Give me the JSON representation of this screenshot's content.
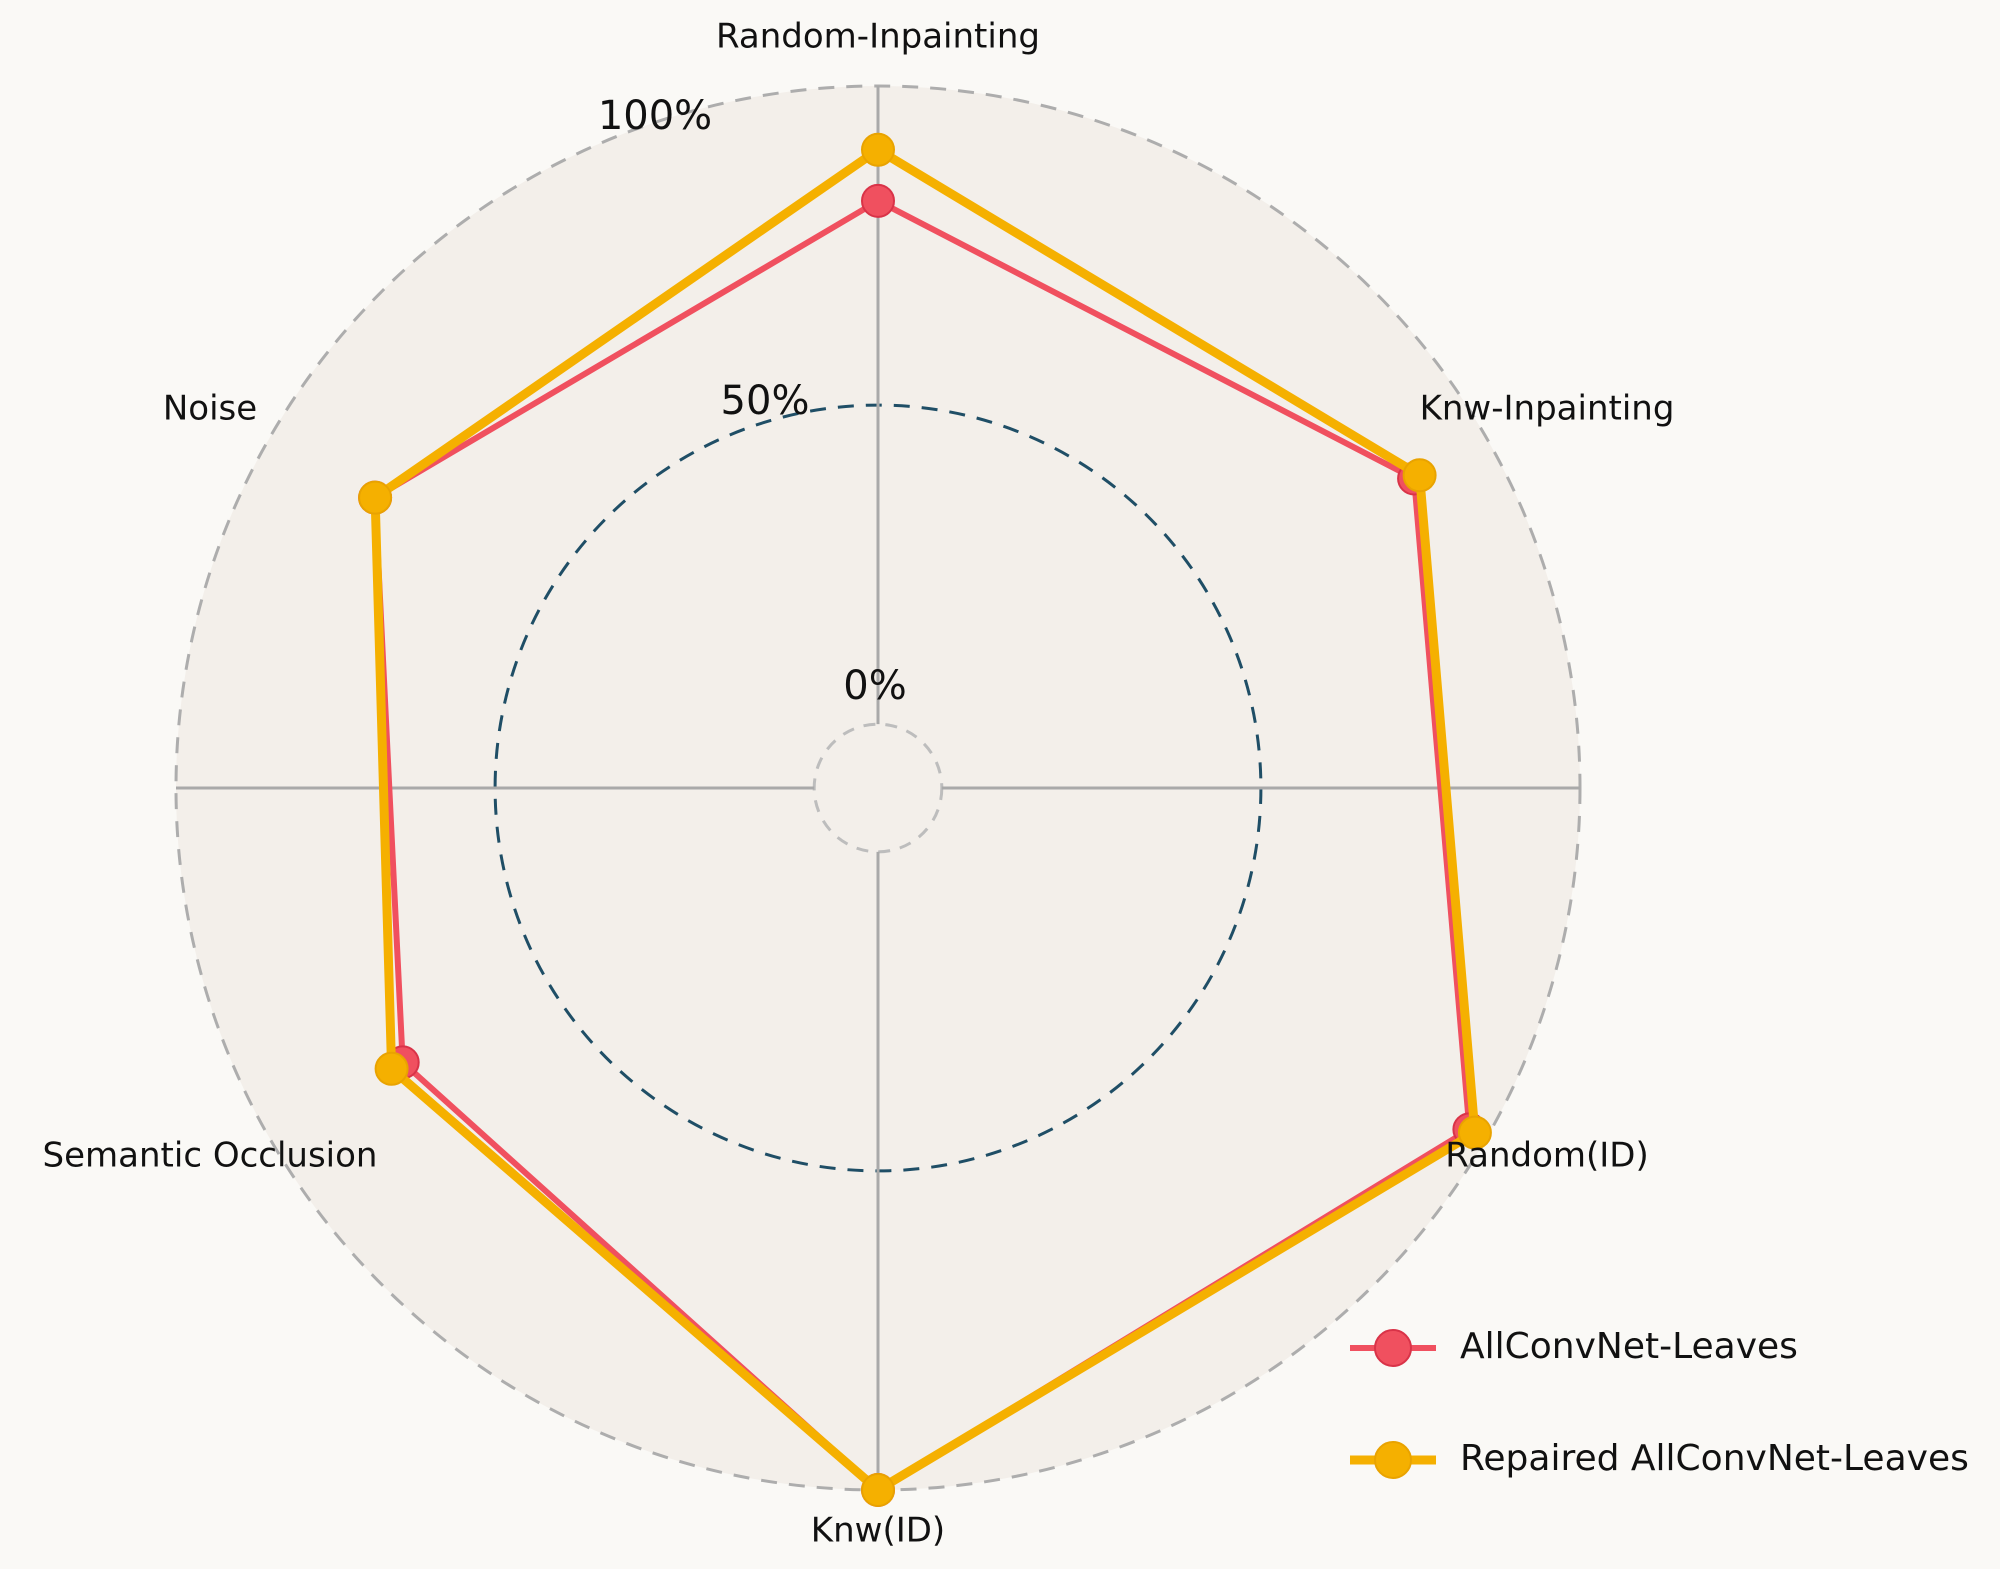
{
  "chart_data": {
    "type": "radar",
    "title": "",
    "axes": [
      "Random-Inpainting",
      "Knw-Inpainting",
      "Random(ID)",
      "Knw(ID)",
      "Semantic Occlusion",
      "Noise"
    ],
    "r_ticks": [
      {
        "value": 0,
        "label": "0%"
      },
      {
        "value": 50,
        "label": "50%"
      },
      {
        "value": 100,
        "label": "100%"
      }
    ],
    "rlim": [
      -10,
      100
    ],
    "grid": true,
    "legend_position": "bottom-right",
    "series": [
      {
        "name": "AllConvNet-Leaves",
        "color": "#f0505f",
        "values": [
          82,
          87,
          97,
          100,
          76,
          81
        ]
      },
      {
        "name": "Repaired AllConvNet-Leaves",
        "color": "#f5b000",
        "values": [
          90,
          88,
          98,
          100,
          78,
          81
        ]
      }
    ]
  }
}
